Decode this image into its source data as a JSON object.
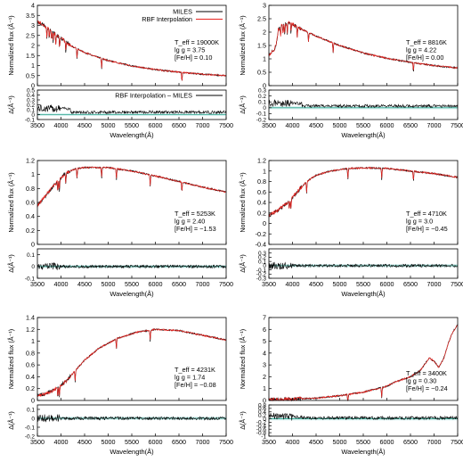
{
  "colors": {
    "miles": "#000000",
    "rbf": "#e8231f",
    "residual": "#000000",
    "zero_line": "#2ca58d",
    "band": "#d6f0f0"
  },
  "chart_data": [
    {
      "type": "line",
      "xlabel": "Wavelength(Å)",
      "ylabel": "Normalized flux (Å⁻¹)",
      "resid_ylabel": "Δ(Å⁻¹)",
      "xlim": [
        3500,
        7500
      ],
      "xticks": [
        "3500",
        "4000",
        "4500",
        "5000",
        "5500",
        "6000",
        "6500",
        "7000",
        "7500"
      ],
      "ylim": [
        0,
        4
      ],
      "yticks": [
        "0",
        "0.5",
        "1",
        "1.5",
        "2",
        "2.5",
        "3",
        "3.5",
        "4"
      ],
      "resid_ylim": [
        -0.1,
        0.5
      ],
      "resid_yticks": [
        "-0.1",
        "0",
        "0.1",
        "0.2",
        "0.3",
        "0.4",
        "0.5"
      ],
      "legend": [
        "MILES",
        "RBF Interpolation"
      ],
      "resid_legend": "RBF Interpolation – MILES",
      "params": [
        "T_eff = 19000K",
        "lg g = 3.75",
        "[Fe/H] = 0.10"
      ],
      "shape": "hot",
      "series": [
        {
          "name": "MILES",
          "x": [
            3500,
            3600,
            3700,
            3800,
            3900,
            4000,
            4200,
            4500,
            5000,
            5500,
            6000,
            6500,
            7000,
            7500
          ],
          "y": [
            3.2,
            3.05,
            2.9,
            2.75,
            2.55,
            2.35,
            2.0,
            1.65,
            1.25,
            0.98,
            0.8,
            0.67,
            0.57,
            0.5
          ]
        },
        {
          "name": "RBF Interpolation",
          "x": [
            3500,
            3600,
            3700,
            3800,
            3900,
            4000,
            4200,
            4500,
            5000,
            5500,
            6000,
            6500,
            7000,
            7500
          ],
          "y": [
            3.2,
            3.05,
            2.9,
            2.75,
            2.55,
            2.35,
            2.0,
            1.65,
            1.25,
            0.98,
            0.8,
            0.67,
            0.57,
            0.5
          ]
        }
      ],
      "lines_at": [
        3700,
        3750,
        3800,
        3835,
        3889,
        3970,
        4101,
        4340,
        4861,
        6563
      ],
      "residual_level": 0.05
    },
    {
      "type": "line",
      "xlabel": "Wavelength(Å)",
      "ylabel": "Normalized flux (Å⁻¹)",
      "resid_ylabel": "Δ(Å⁻¹)",
      "xlim": [
        3500,
        7500
      ],
      "xticks": [
        "3500",
        "4000",
        "4500",
        "5000",
        "5500",
        "6000",
        "6500",
        "7000",
        "7500"
      ],
      "ylim": [
        0,
        3
      ],
      "yticks": [
        "0",
        "0.5",
        "1",
        "1.5",
        "2",
        "2.5",
        "3"
      ],
      "resid_ylim": [
        -0.2,
        0.3
      ],
      "resid_yticks": [
        "-0.2",
        "-0.1",
        "0",
        "0.1",
        "0.2",
        "0.3"
      ],
      "params": [
        "T_eff = 8816K",
        "lg g = 4.22",
        "[Fe/H] = 0.00"
      ],
      "shape": "a-star",
      "series": [
        {
          "name": "MILES",
          "x": [
            3500,
            3600,
            3650,
            3700,
            3800,
            3900,
            4000,
            4200,
            4500,
            5000,
            5500,
            6000,
            6500,
            7000,
            7500
          ],
          "y": [
            1.15,
            1.3,
            1.5,
            2.1,
            2.3,
            2.35,
            2.3,
            2.1,
            1.85,
            1.5,
            1.22,
            1.02,
            0.87,
            0.75,
            0.66
          ]
        },
        {
          "name": "RBF Interpolation",
          "x": [
            3500,
            3600,
            3650,
            3700,
            3800,
            3900,
            4000,
            4200,
            4500,
            5000,
            5500,
            6000,
            6500,
            7000,
            7500
          ],
          "y": [
            1.15,
            1.3,
            1.5,
            2.1,
            2.3,
            2.35,
            2.3,
            2.1,
            1.85,
            1.5,
            1.22,
            1.02,
            0.87,
            0.75,
            0.66
          ]
        }
      ],
      "lines_at": [
        3750,
        3800,
        3835,
        3889,
        3970,
        4101,
        4340,
        4861,
        6563
      ],
      "residual_level": 0.03
    },
    {
      "type": "line",
      "xlabel": "Wavelength(Å)",
      "ylabel": "Normalized flux (Å⁻¹)",
      "resid_ylabel": "Δ(Å⁻¹)",
      "xlim": [
        3500,
        7500
      ],
      "xticks": [
        "3500",
        "4000",
        "4500",
        "5000",
        "5500",
        "6000",
        "6500",
        "7000",
        "7500"
      ],
      "ylim": [
        0,
        1.2
      ],
      "yticks": [
        "0",
        "0.2",
        "0.4",
        "0.6",
        "0.8",
        "1",
        "1.2"
      ],
      "resid_ylim": [
        -0.1,
        0.15
      ],
      "resid_yticks": [
        "-0.1",
        "0",
        "0.1"
      ],
      "params": [
        "T_eff = 5253K",
        "lg g = 2.40",
        "[Fe/H] = −1.53"
      ],
      "shape": "g-star",
      "series": [
        {
          "name": "MILES",
          "x": [
            3500,
            3700,
            3900,
            4100,
            4300,
            4500,
            5000,
            5500,
            6000,
            6500,
            7000,
            7500
          ],
          "y": [
            0.55,
            0.72,
            0.88,
            1.02,
            1.08,
            1.1,
            1.1,
            1.05,
            0.98,
            0.9,
            0.82,
            0.75
          ]
        },
        {
          "name": "RBF Interpolation",
          "x": [
            3500,
            3700,
            3900,
            4100,
            4300,
            4500,
            5000,
            5500,
            6000,
            6500,
            7000,
            7500
          ],
          "y": [
            0.55,
            0.72,
            0.88,
            1.02,
            1.08,
            1.1,
            1.1,
            1.05,
            0.98,
            0.9,
            0.82,
            0.75
          ]
        }
      ],
      "lines_at": [
        3933,
        3968,
        4101,
        4340,
        4861,
        5175,
        5890,
        6563
      ],
      "residual_level": 0.0
    },
    {
      "type": "line",
      "xlabel": "Wavelength(Å)",
      "ylabel": "Normalized flux (Å⁻¹)",
      "resid_ylabel": "Δ(Å⁻¹)",
      "xlim": [
        3500,
        7500
      ],
      "xticks": [
        "3500",
        "4000",
        "4500",
        "5000",
        "5500",
        "6000",
        "6500",
        "7000",
        "7500"
      ],
      "ylim": [
        -0.4,
        1.2
      ],
      "yticks": [
        "-0.4",
        "-0.2",
        "0",
        "0.2",
        "0.4",
        "0.6",
        "0.8",
        "1",
        "1.2"
      ],
      "resid_ylim": [
        -0.3,
        0.4
      ],
      "resid_yticks": [
        "-0.3",
        "-0.2",
        "-0.1",
        "0",
        "0.1",
        "0.2",
        "0.3"
      ],
      "params": [
        "T_eff = 4710K",
        "lg g = 3.0",
        "[Fe/H] = −0.45"
      ],
      "shape": "k-star",
      "series": [
        {
          "name": "MILES",
          "x": [
            3500,
            3700,
            3900,
            4100,
            4300,
            4500,
            4800,
            5200,
            5600,
            6000,
            6500,
            7000,
            7500
          ],
          "y": [
            0.15,
            0.25,
            0.4,
            0.6,
            0.8,
            0.92,
            1.0,
            1.05,
            1.06,
            1.05,
            1.0,
            0.95,
            0.88
          ]
        },
        {
          "name": "RBF Interpolation",
          "x": [
            3500,
            3700,
            3900,
            4100,
            4300,
            4500,
            4800,
            5200,
            5600,
            6000,
            6500,
            7000,
            7500
          ],
          "y": [
            0.15,
            0.25,
            0.4,
            0.6,
            0.8,
            0.92,
            1.0,
            1.05,
            1.06,
            1.05,
            1.0,
            0.95,
            0.88
          ]
        }
      ],
      "lines_at": [
        3933,
        3968,
        4300,
        5175,
        5890,
        6563
      ],
      "residual_level": 0.0
    },
    {
      "type": "line",
      "xlabel": "Wavelength(Å)",
      "ylabel": "Normalized flux (Å⁻¹)",
      "resid_ylabel": "Δ(Å⁻¹)",
      "xlim": [
        3500,
        7500
      ],
      "xticks": [
        "3500",
        "4000",
        "4500",
        "5000",
        "5500",
        "6000",
        "6500",
        "7000",
        "7500"
      ],
      "ylim": [
        0,
        1.4
      ],
      "yticks": [
        "0",
        "0.2",
        "0.4",
        "0.6",
        "0.8",
        "1",
        "1.2",
        "1.4"
      ],
      "resid_ylim": [
        -0.2,
        0.15
      ],
      "resid_yticks": [
        "-0.2",
        "-0.1",
        "0",
        "0.1"
      ],
      "params": [
        "T_eff = 4231K",
        "lg g = 1.74",
        "[Fe/H] = −0.08"
      ],
      "shape": "cool-k",
      "series": [
        {
          "name": "MILES",
          "x": [
            3500,
            3700,
            3900,
            4100,
            4300,
            4500,
            4800,
            5200,
            5600,
            6000,
            6500,
            7000,
            7500
          ],
          "y": [
            0.08,
            0.12,
            0.2,
            0.32,
            0.5,
            0.68,
            0.88,
            1.05,
            1.15,
            1.2,
            1.18,
            1.1,
            1.02
          ]
        },
        {
          "name": "RBF Interpolation",
          "x": [
            3500,
            3700,
            3900,
            4100,
            4300,
            4500,
            4800,
            5200,
            5600,
            6000,
            6500,
            7000,
            7500
          ],
          "y": [
            0.08,
            0.12,
            0.2,
            0.32,
            0.5,
            0.68,
            0.88,
            1.05,
            1.15,
            1.2,
            1.18,
            1.1,
            1.02
          ]
        }
      ],
      "lines_at": [
        3933,
        3968,
        4300,
        5175,
        5890
      ],
      "residual_level": 0.0
    },
    {
      "type": "line",
      "xlabel": "Wavelength(Å)",
      "ylabel": "Normalized flux (Å⁻¹)",
      "resid_ylabel": "Δ(Å⁻¹)",
      "xlim": [
        3500,
        7500
      ],
      "xticks": [
        "3500",
        "4000",
        "4500",
        "5000",
        "5500",
        "6000",
        "6500",
        "7000",
        "7500"
      ],
      "ylim": [
        0,
        7
      ],
      "yticks": [
        "0",
        "1",
        "2",
        "3",
        "4",
        "5",
        "6",
        "7"
      ],
      "resid_ylim": [
        -1.0,
        0.8
      ],
      "resid_yticks": [
        "-1",
        "-0.8",
        "-0.6",
        "-0.4",
        "-0.2",
        "0",
        "0.2",
        "0.4",
        "0.6",
        "0.8"
      ],
      "params": [
        "T_eff = 3400K",
        "lg g = 0.30",
        "[Fe/H] = −0.24"
      ],
      "shape": "m-star",
      "series": [
        {
          "name": "MILES",
          "x": [
            3500,
            4000,
            4500,
            5000,
            5500,
            6000,
            6200,
            6500,
            6700,
            6900,
            7000,
            7100,
            7200,
            7300,
            7400,
            7500
          ],
          "y": [
            0.05,
            0.1,
            0.2,
            0.4,
            0.7,
            1.2,
            1.6,
            2.0,
            2.5,
            3.6,
            3.3,
            2.8,
            3.5,
            4.8,
            5.8,
            6.4
          ]
        },
        {
          "name": "RBF Interpolation",
          "x": [
            3500,
            4000,
            4500,
            5000,
            5500,
            6000,
            6200,
            6500,
            6700,
            6900,
            7000,
            7100,
            7200,
            7300,
            7400,
            7500
          ],
          "y": [
            0.05,
            0.1,
            0.2,
            0.4,
            0.7,
            1.2,
            1.6,
            2.0,
            2.5,
            3.6,
            3.3,
            2.8,
            3.5,
            4.8,
            5.8,
            6.4
          ]
        }
      ],
      "lines_at": [
        5175,
        5890
      ],
      "residual_level": 0.05
    }
  ]
}
